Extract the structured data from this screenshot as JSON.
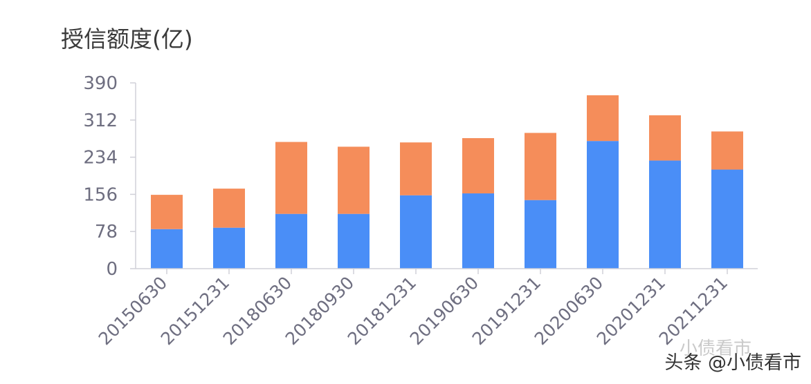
{
  "chart_data": {
    "type": "bar",
    "stacked": true,
    "title": "授信额度(亿)",
    "categories": [
      "20150630",
      "20151231",
      "20180630",
      "20180930",
      "20181231",
      "20190630",
      "20191231",
      "20200630",
      "20201231",
      "20211231"
    ],
    "series": [
      {
        "color": "#4a8ef7",
        "values": [
          83,
          86,
          115,
          115,
          154,
          158,
          144,
          268,
          227,
          208
        ]
      },
      {
        "color": "#f58d5a",
        "values": [
          72,
          82,
          151,
          141,
          111,
          116,
          141,
          96,
          95,
          80
        ]
      }
    ],
    "ylim": [
      0,
      390
    ],
    "yticks": [
      "390",
      "312",
      "234",
      "156",
      "78",
      "0"
    ],
    "grid": false,
    "legend": "none"
  },
  "watermark": {
    "faint": "小债看市",
    "text": "头条 @小债看市"
  }
}
